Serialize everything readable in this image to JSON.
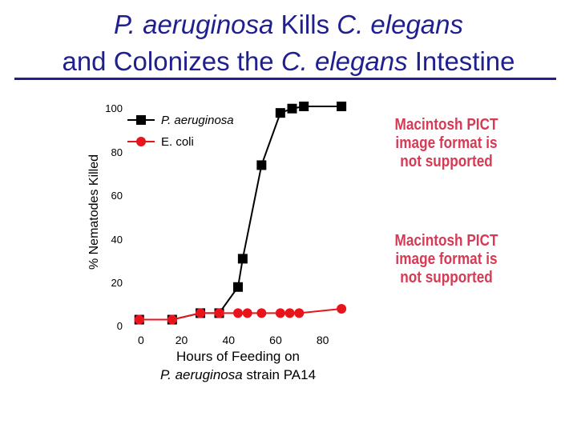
{
  "slide": {
    "title_line1": [
      "P. aeruginosa",
      " Kills ",
      "C. elegans"
    ],
    "title_line2": [
      "and Colonizes the ",
      "C. elegans",
      " Intestine"
    ]
  },
  "placeholders": [
    "Macintosh PICT image format is not supported",
    "Macintosh PICT image format is not supported"
  ],
  "colors": {
    "title": "#1f1f8f",
    "pseudomonas": "#000000",
    "ecoli": "#e8141b",
    "placeholder": "#d63a55"
  },
  "chart_data": {
    "type": "line",
    "title": "",
    "ylabel": "% Nematodes Killed",
    "xlabel_lines": [
      "Hours of Feeding on",
      "P. aeruginosa strain PA14"
    ],
    "xticks": [
      0,
      20,
      40,
      60,
      80
    ],
    "yticks": [
      0,
      20,
      40,
      60,
      80,
      100
    ],
    "xlim": [
      -2,
      90
    ],
    "ylim": [
      0,
      100
    ],
    "legend_position": "top-left",
    "series": [
      {
        "name": "P. aeruginosa",
        "marker": "square",
        "x": [
          2,
          16,
          28,
          36,
          44,
          46,
          54,
          62,
          67,
          72,
          88
        ],
        "y": [
          2,
          2,
          5,
          5,
          17,
          30,
          73,
          97,
          99,
          100,
          100
        ]
      },
      {
        "name": "E. coli",
        "marker": "circle",
        "x": [
          2,
          16,
          28,
          36,
          44,
          48,
          54,
          62,
          66,
          70,
          88
        ],
        "y": [
          2,
          2,
          5,
          5,
          5,
          5,
          5,
          5,
          5,
          5,
          7
        ]
      }
    ]
  }
}
